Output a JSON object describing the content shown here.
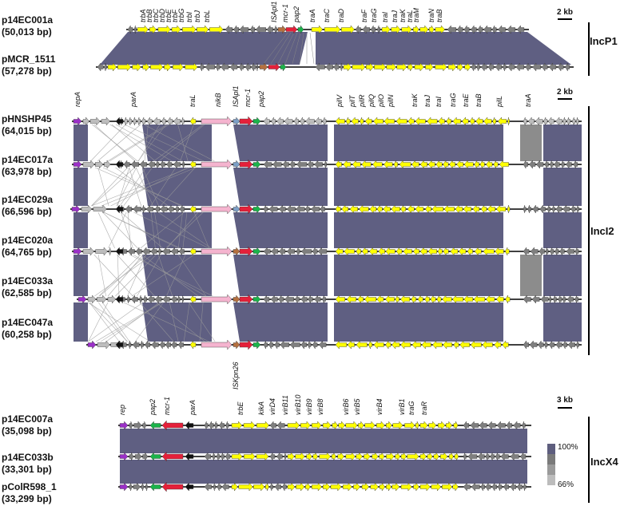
{
  "groups": {
    "incp1": {
      "label": "IncP1",
      "scale": "2 kb",
      "plasmids": [
        {
          "name": "p14EC001a",
          "size": "(50,013 bp)"
        },
        {
          "name": "pMCR_1511",
          "size": "(57,278 bp)"
        }
      ],
      "genes": [
        "trbA",
        "trbB",
        "trbC",
        "trbD",
        "trbE",
        "trbF",
        "trbG",
        "trbI",
        "trbJ",
        "trbL",
        "ISApl1",
        "mcr-1",
        "pap2",
        "traA",
        "traC",
        "traD",
        "traF",
        "traG",
        "traI",
        "traJ",
        "traK",
        "traL",
        "traM",
        "traN",
        "traB"
      ]
    },
    "inci2": {
      "label": "IncI2",
      "scale": "2 kb",
      "plasmids": [
        {
          "name": "pHNSHP45",
          "size": "(64,015 bp)"
        },
        {
          "name": "p14EC017a",
          "size": "(63,978 bp)"
        },
        {
          "name": "p14EC029a",
          "size": "(66,596 bp)"
        },
        {
          "name": "p14EC020a",
          "size": "(64,765 bp)"
        },
        {
          "name": "p14EC033a",
          "size": "(62,585 bp)"
        },
        {
          "name": "p14EC047a",
          "size": "(60,258 bp)"
        }
      ],
      "genes": [
        "repA",
        "parA",
        "traL",
        "nikB",
        "ISApl1",
        "mcr-1",
        "pap2",
        "pilV",
        "pilT",
        "pilR",
        "pilQ",
        "pilO",
        "pilN",
        "traK",
        "traJ",
        "traI",
        "traG",
        "traE",
        "traB",
        "pilL",
        "traA"
      ],
      "bottom_gene": "ISKpn26"
    },
    "incx4": {
      "label": "IncX4",
      "scale": "3 kb",
      "plasmids": [
        {
          "name": "p14EC007a",
          "size": "(35,098 bp)"
        },
        {
          "name": "p14EC033b",
          "size": "(33,301 bp)"
        },
        {
          "name": "pColR598_1",
          "size": "(33,299 bp)"
        }
      ],
      "genes": [
        "rep",
        "pap2",
        "mcr-1",
        "parA",
        "trbE",
        "kikA",
        "virD4",
        "virB11",
        "virB10",
        "virB9",
        "virB8",
        "virB6",
        "virB5",
        "virB4",
        "virB1",
        "traG",
        "traR"
      ]
    }
  },
  "identity_legend": {
    "max": "100%",
    "min": "66%"
  },
  "colors": {
    "yellow": "#ffff00",
    "grey": "#7f7f7f",
    "lightgrey": "#bdbdbd",
    "red": "#e5203a",
    "green": "#1bb34a",
    "purple": "#9b30c8",
    "black": "#111111",
    "pink": "#f5b4cf",
    "brown": "#b5703f",
    "blue": "#7d9fc6",
    "band": "#5f5f82"
  }
}
